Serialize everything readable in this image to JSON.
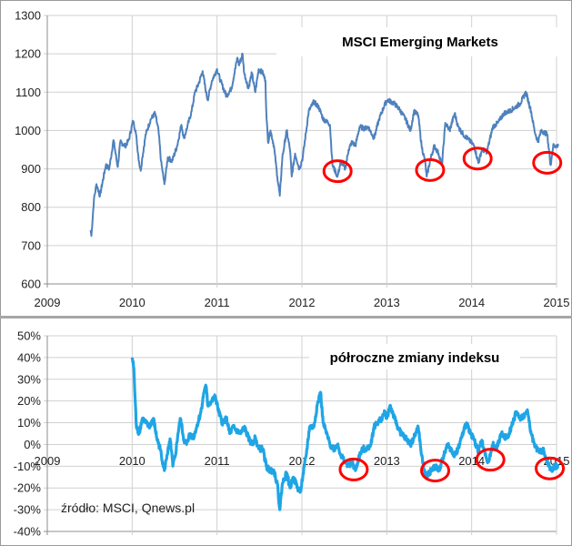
{
  "chart_data": [
    {
      "type": "line",
      "title": "MSCI Emerging Markets",
      "xlabel": "",
      "ylabel": "",
      "xlim": [
        2009,
        2015
      ],
      "ylim": [
        600,
        1300
      ],
      "x_ticks": [
        "2009",
        "2010",
        "2011",
        "2012",
        "2013",
        "2014",
        "2015"
      ],
      "y_ticks": [
        "600",
        "700",
        "800",
        "900",
        "1000",
        "1100",
        "1200",
        "1300"
      ],
      "grid": true,
      "series": [
        {
          "name": "MSCI Emerging Markets",
          "color": "#4f81bd",
          "points": [
            [
              2009.51,
              740
            ],
            [
              2009.52,
              725
            ],
            [
              2009.55,
              820
            ],
            [
              2009.58,
              860
            ],
            [
              2009.62,
              830
            ],
            [
              2009.69,
              910
            ],
            [
              2009.73,
              900
            ],
            [
              2009.78,
              975
            ],
            [
              2009.83,
              905
            ],
            [
              2009.86,
              970
            ],
            [
              2009.92,
              960
            ],
            [
              2009.96,
              975
            ],
            [
              2010.01,
              1025
            ],
            [
              2010.04,
              1000
            ],
            [
              2010.08,
              920
            ],
            [
              2010.1,
              895
            ],
            [
              2010.12,
              930
            ],
            [
              2010.16,
              990
            ],
            [
              2010.22,
              1030
            ],
            [
              2010.27,
              1045
            ],
            [
              2010.31,
              1000
            ],
            [
              2010.34,
              920
            ],
            [
              2010.38,
              860
            ],
            [
              2010.42,
              930
            ],
            [
              2010.47,
              920
            ],
            [
              2010.53,
              960
            ],
            [
              2010.58,
              1015
            ],
            [
              2010.61,
              980
            ],
            [
              2010.65,
              1010
            ],
            [
              2010.7,
              1050
            ],
            [
              2010.74,
              1100
            ],
            [
              2010.78,
              1120
            ],
            [
              2010.83,
              1155
            ],
            [
              2010.87,
              1100
            ],
            [
              2010.89,
              1080
            ],
            [
              2010.94,
              1130
            ],
            [
              2011.0,
              1160
            ],
            [
              2011.04,
              1130
            ],
            [
              2011.11,
              1090
            ],
            [
              2011.17,
              1110
            ],
            [
              2011.24,
              1190
            ],
            [
              2011.26,
              1170
            ],
            [
              2011.3,
              1200
            ],
            [
              2011.32,
              1150
            ],
            [
              2011.37,
              1110
            ],
            [
              2011.41,
              1150
            ],
            [
              2011.45,
              1100
            ],
            [
              2011.49,
              1160
            ],
            [
              2011.54,
              1150
            ],
            [
              2011.57,
              1130
            ],
            [
              2011.58,
              1050
            ],
            [
              2011.6,
              970
            ],
            [
              2011.63,
              1000
            ],
            [
              2011.67,
              960
            ],
            [
              2011.71,
              880
            ],
            [
              2011.74,
              830
            ],
            [
              2011.77,
              930
            ],
            [
              2011.82,
              1000
            ],
            [
              2011.86,
              950
            ],
            [
              2011.88,
              880
            ],
            [
              2011.92,
              940
            ],
            [
              2011.97,
              900
            ],
            [
              2012.01,
              930
            ],
            [
              2012.08,
              1050
            ],
            [
              2012.14,
              1075
            ],
            [
              2012.2,
              1060
            ],
            [
              2012.25,
              1030
            ],
            [
              2012.31,
              1020
            ],
            [
              2012.33,
              1015
            ],
            [
              2012.36,
              910
            ],
            [
              2012.4,
              890
            ],
            [
              2012.42,
              880
            ],
            [
              2012.46,
              920
            ],
            [
              2012.51,
              900
            ],
            [
              2012.55,
              950
            ],
            [
              2012.59,
              970
            ],
            [
              2012.63,
              960
            ],
            [
              2012.68,
              1010
            ],
            [
              2012.74,
              1005
            ],
            [
              2012.78,
              1010
            ],
            [
              2012.85,
              980
            ],
            [
              2012.91,
              1030
            ],
            [
              2012.98,
              1070
            ],
            [
              2013.01,
              1080
            ],
            [
              2013.09,
              1070
            ],
            [
              2013.15,
              1055
            ],
            [
              2013.22,
              1030
            ],
            [
              2013.28,
              1000
            ],
            [
              2013.32,
              1050
            ],
            [
              2013.37,
              1040
            ],
            [
              2013.41,
              960
            ],
            [
              2013.45,
              920
            ],
            [
              2013.47,
              880
            ],
            [
              2013.52,
              930
            ],
            [
              2013.56,
              960
            ],
            [
              2013.61,
              940
            ],
            [
              2013.65,
              910
            ],
            [
              2013.69,
              1020
            ],
            [
              2013.74,
              1000
            ],
            [
              2013.8,
              1045
            ],
            [
              2013.84,
              1010
            ],
            [
              2013.9,
              990
            ],
            [
              2013.97,
              975
            ],
            [
              2014.03,
              960
            ],
            [
              2014.08,
              915
            ],
            [
              2014.12,
              950
            ],
            [
              2014.18,
              945
            ],
            [
              2014.25,
              1010
            ],
            [
              2014.31,
              1020
            ],
            [
              2014.38,
              1045
            ],
            [
              2014.44,
              1050
            ],
            [
              2014.51,
              1060
            ],
            [
              2014.57,
              1070
            ],
            [
              2014.64,
              1100
            ],
            [
              2014.7,
              1050
            ],
            [
              2014.74,
              1000
            ],
            [
              2014.78,
              970
            ],
            [
              2014.82,
              1000
            ],
            [
              2014.89,
              990
            ],
            [
              2014.93,
              910
            ],
            [
              2014.96,
              960
            ],
            [
              2015.02,
              960
            ]
          ]
        }
      ],
      "annotations": [
        {
          "type": "ellipse",
          "x": 2012.42,
          "y": 894,
          "color": "#ff0000"
        },
        {
          "type": "ellipse",
          "x": 2013.51,
          "y": 897,
          "color": "#ff0000"
        },
        {
          "type": "ellipse",
          "x": 2014.07,
          "y": 927,
          "color": "#ff0000"
        },
        {
          "type": "ellipse",
          "x": 2014.89,
          "y": 916,
          "color": "#ff0000"
        }
      ]
    },
    {
      "type": "line",
      "title": "półroczne zmiany indeksu",
      "source": "źródło: MSCI, Qnews.pl",
      "xlabel": "",
      "ylabel": "",
      "xlim": [
        2009,
        2015
      ],
      "ylim": [
        -40,
        50
      ],
      "x_ticks": [
        "2009",
        "2010",
        "2011",
        "2012",
        "2013",
        "2014",
        "2015"
      ],
      "y_ticks": [
        "-40%",
        "-30%",
        "-20%",
        "-10%",
        "0%",
        "10%",
        "20%",
        "30%",
        "40%",
        "50%"
      ],
      "grid": true,
      "series": [
        {
          "name": "półroczne zmiany indeksu (%)",
          "color": "#1fa5e6",
          "points": [
            [
              2010.0,
              40
            ],
            [
              2010.02,
              35
            ],
            [
              2010.03,
              25
            ],
            [
              2010.05,
              8
            ],
            [
              2010.08,
              5
            ],
            [
              2010.12,
              12
            ],
            [
              2010.16,
              10
            ],
            [
              2010.2,
              8
            ],
            [
              2010.25,
              12
            ],
            [
              2010.29,
              3
            ],
            [
              2010.33,
              -2
            ],
            [
              2010.37,
              -10
            ],
            [
              2010.38,
              -12
            ],
            [
              2010.41,
              -5
            ],
            [
              2010.45,
              2
            ],
            [
              2010.48,
              -10
            ],
            [
              2010.51,
              -5
            ],
            [
              2010.54,
              5
            ],
            [
              2010.57,
              12
            ],
            [
              2010.61,
              2
            ],
            [
              2010.64,
              0
            ],
            [
              2010.68,
              5
            ],
            [
              2010.72,
              3
            ],
            [
              2010.76,
              8
            ],
            [
              2010.81,
              15
            ],
            [
              2010.85,
              25
            ],
            [
              2010.87,
              27
            ],
            [
              2010.89,
              18
            ],
            [
              2010.94,
              20
            ],
            [
              2010.98,
              22
            ],
            [
              2011.02,
              15
            ],
            [
              2011.06,
              10
            ],
            [
              2011.11,
              12
            ],
            [
              2011.15,
              5
            ],
            [
              2011.19,
              8
            ],
            [
              2011.24,
              6
            ],
            [
              2011.28,
              5
            ],
            [
              2011.32,
              8
            ],
            [
              2011.37,
              3
            ],
            [
              2011.41,
              0
            ],
            [
              2011.45,
              3
            ],
            [
              2011.49,
              -2
            ],
            [
              2011.54,
              -2
            ],
            [
              2011.58,
              -10
            ],
            [
              2011.62,
              -12
            ],
            [
              2011.67,
              -12
            ],
            [
              2011.71,
              -18
            ],
            [
              2011.74,
              -30
            ],
            [
              2011.77,
              -18
            ],
            [
              2011.82,
              -13
            ],
            [
              2011.86,
              -20
            ],
            [
              2011.9,
              -15
            ],
            [
              2011.95,
              -20
            ],
            [
              2011.98,
              -22
            ],
            [
              2012.01,
              -15
            ],
            [
              2012.05,
              -5
            ],
            [
              2012.09,
              8
            ],
            [
              2012.14,
              8
            ],
            [
              2012.18,
              18
            ],
            [
              2012.22,
              24
            ],
            [
              2012.25,
              10
            ],
            [
              2012.29,
              5
            ],
            [
              2012.33,
              0
            ],
            [
              2012.38,
              -2
            ],
            [
              2012.42,
              0
            ],
            [
              2012.46,
              -5
            ],
            [
              2012.51,
              -8
            ],
            [
              2012.55,
              -10
            ],
            [
              2012.59,
              -8
            ],
            [
              2012.63,
              -12
            ],
            [
              2012.68,
              -5
            ],
            [
              2012.72,
              -2
            ],
            [
              2012.76,
              -2
            ],
            [
              2012.81,
              0
            ],
            [
              2012.85,
              8
            ],
            [
              2012.89,
              10
            ],
            [
              2012.94,
              12
            ],
            [
              2012.98,
              15
            ],
            [
              2013.0,
              12
            ],
            [
              2013.04,
              18
            ],
            [
              2013.09,
              12
            ],
            [
              2013.13,
              8
            ],
            [
              2013.17,
              5
            ],
            [
              2013.22,
              3
            ],
            [
              2013.28,
              0
            ],
            [
              2013.32,
              3
            ],
            [
              2013.37,
              8
            ],
            [
              2013.41,
              -5
            ],
            [
              2013.44,
              -12
            ],
            [
              2013.47,
              -15
            ],
            [
              2013.52,
              -12
            ],
            [
              2013.58,
              -10
            ],
            [
              2013.62,
              -12
            ],
            [
              2013.67,
              -5
            ],
            [
              2013.71,
              0
            ],
            [
              2013.75,
              -2
            ],
            [
              2013.8,
              -5
            ],
            [
              2013.84,
              -2
            ],
            [
              2013.88,
              3
            ],
            [
              2013.94,
              10
            ],
            [
              2013.99,
              5
            ],
            [
              2014.03,
              2
            ],
            [
              2014.08,
              -3
            ],
            [
              2014.12,
              2
            ],
            [
              2014.16,
              -5
            ],
            [
              2014.2,
              -8
            ],
            [
              2014.25,
              0
            ],
            [
              2014.29,
              -2
            ],
            [
              2014.35,
              5
            ],
            [
              2014.4,
              3
            ],
            [
              2014.44,
              5
            ],
            [
              2014.48,
              10
            ],
            [
              2014.53,
              15
            ],
            [
              2014.57,
              12
            ],
            [
              2014.61,
              13
            ],
            [
              2014.66,
              15
            ],
            [
              2014.7,
              5
            ],
            [
              2014.74,
              0
            ],
            [
              2014.78,
              -3
            ],
            [
              2014.85,
              -3
            ],
            [
              2014.89,
              -8
            ],
            [
              2014.94,
              -12
            ],
            [
              2014.98,
              -10
            ],
            [
              2015.02,
              -10
            ]
          ]
        }
      ],
      "annotations": [
        {
          "type": "ellipse",
          "x": 2012.61,
          "y": -11.5,
          "color": "#ff0000"
        },
        {
          "type": "ellipse",
          "x": 2013.57,
          "y": -12,
          "color": "#ff0000"
        },
        {
          "type": "ellipse",
          "x": 2014.22,
          "y": -7,
          "color": "#ff0000"
        },
        {
          "type": "ellipse",
          "x": 2014.92,
          "y": -11,
          "color": "#ff0000"
        }
      ]
    }
  ]
}
